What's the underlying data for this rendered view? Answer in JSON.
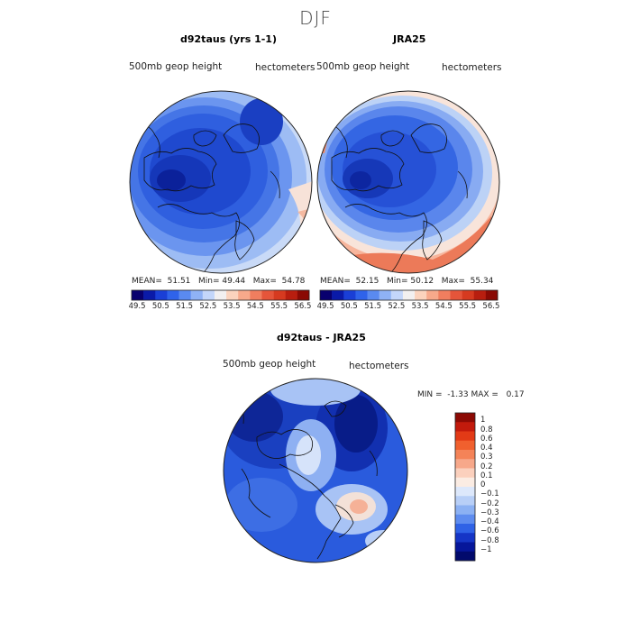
{
  "season_title": "DJF",
  "panels": [
    {
      "title": "d92taus (yrs 1-1)",
      "field_label": "500mb geop height",
      "units_label": "hectometers",
      "stats": {
        "mean_label": "MEAN=",
        "mean": "51.51",
        "min_label": "Min=",
        "min": "49.44",
        "max_label": "Max=",
        "max": "54.78"
      }
    },
    {
      "title": "JRA25",
      "field_label": "500mb geop height",
      "units_label": "hectometers",
      "stats": {
        "mean_label": "MEAN=",
        "mean": "52.15",
        "min_label": "Min=",
        "min": "50.12",
        "max_label": "Max=",
        "max": "55.34"
      }
    }
  ],
  "horizontal_colorbar": {
    "tick_labels": [
      "49.5",
      "50.5",
      "51.5",
      "52.5",
      "53.5",
      "54.5",
      "55.5",
      "56.5"
    ],
    "colors": [
      "#08006e",
      "#0a1aa8",
      "#1a3fd6",
      "#2f63ea",
      "#5a8af0",
      "#8fb2f5",
      "#c3d6fa",
      "#f2f0f0",
      "#fbd3bd",
      "#f7a98b",
      "#f07e5f",
      "#e5553a",
      "#d63a20",
      "#b81e0f",
      "#8a0a04"
    ]
  },
  "difference_panel": {
    "title": "d92taus - JRA25",
    "field_label": "500mb geop height",
    "units_label": "hectometers",
    "stats": {
      "min_label": "MIN =",
      "min": "-1.33",
      "max_label": "MAX =",
      "max": "0.17"
    }
  },
  "vertical_colorbar": {
    "levels": [
      "1",
      "0.8",
      "0.6",
      "0.4",
      "0.3",
      "0.2",
      "0.1",
      "0",
      "−0.1",
      "−0.2",
      "−0.3",
      "−0.4",
      "−0.6",
      "−0.8",
      "−1"
    ],
    "colors": [
      "#8c0a04",
      "#c21a0c",
      "#e23a16",
      "#f0602e",
      "#f48358",
      "#f7a88a",
      "#fbd0bd",
      "#fbece3",
      "#dde8fb",
      "#b8cff7",
      "#8cb1f3",
      "#5e8cef",
      "#2f62e6",
      "#1535c6",
      "#06169a",
      "#020a6c"
    ]
  }
}
